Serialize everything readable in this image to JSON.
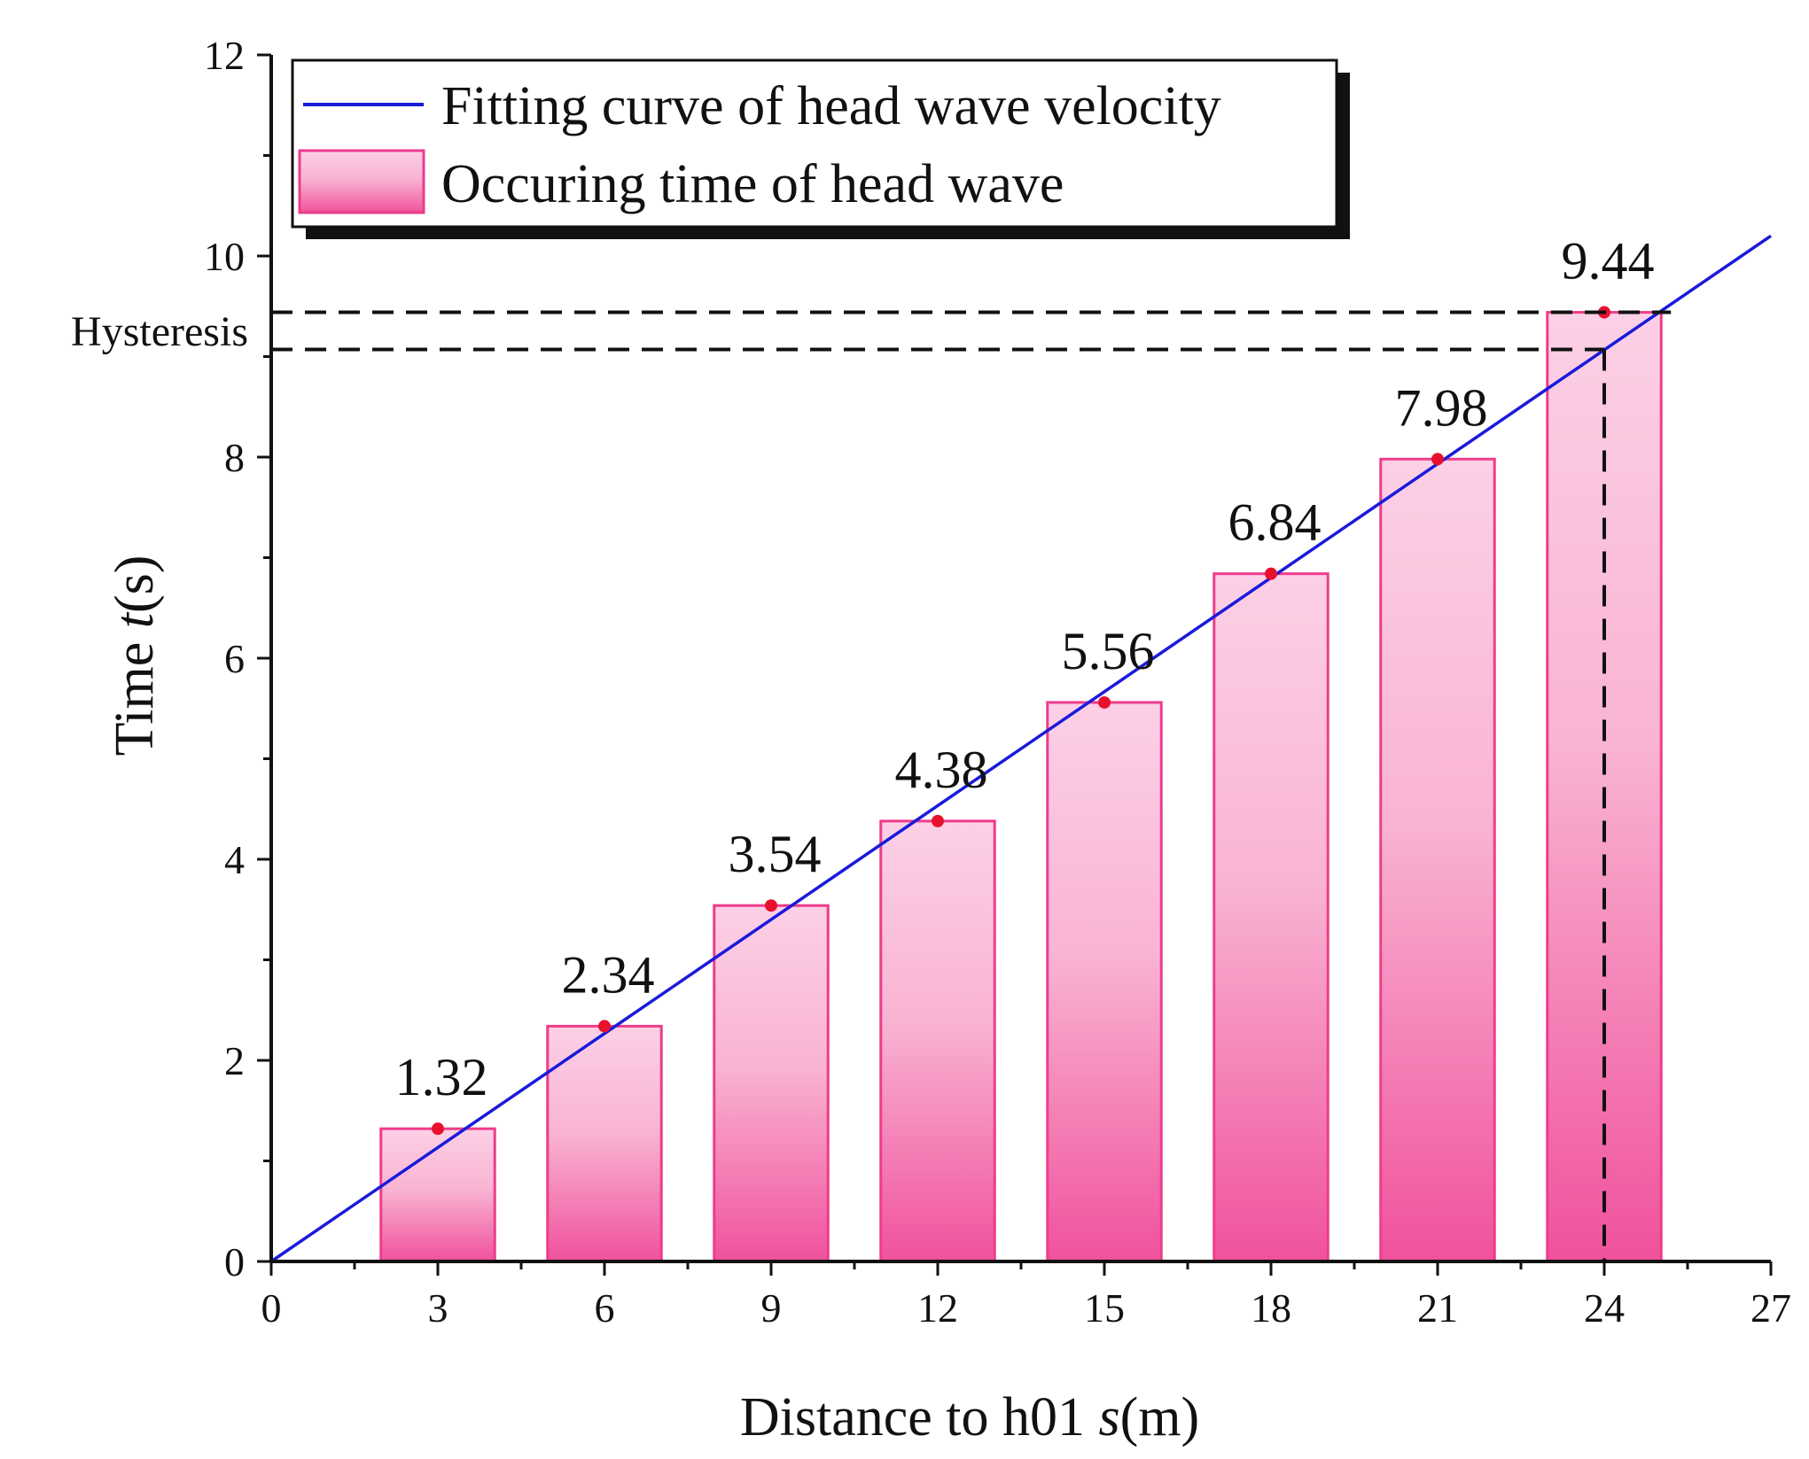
{
  "chart_data": {
    "type": "bar",
    "x": [
      3,
      6,
      9,
      12,
      15,
      18,
      21,
      24
    ],
    "values": [
      1.32,
      2.34,
      3.54,
      4.38,
      5.56,
      6.84,
      7.98,
      9.44
    ],
    "data_labels": [
      "1.32",
      "2.34",
      "3.54",
      "4.38",
      "5.56",
      "6.84",
      "7.98",
      "9.44"
    ],
    "fit_line": {
      "x_start": 0,
      "y_start": 0,
      "x_end": 27,
      "y_end": 10.2
    },
    "hysteresis": {
      "upper": 9.44,
      "lower": 9.07,
      "x": 24,
      "label": "Hysteresis"
    },
    "xlim": [
      0,
      27
    ],
    "ylim": [
      0,
      12
    ],
    "xticks": [
      0,
      3,
      6,
      9,
      12,
      15,
      18,
      21,
      24,
      27
    ],
    "xtick_labels": [
      "0",
      "3",
      "6",
      "9",
      "12",
      "15",
      "18",
      "21",
      "24",
      "27"
    ],
    "yticks": [
      0,
      2,
      4,
      6,
      8,
      10,
      12
    ],
    "ytick_labels": [
      "0",
      "2",
      "4",
      "6",
      "8",
      "10",
      "12"
    ],
    "xlabel": {
      "pre": "Distance to h01 ",
      "var": "s",
      "post": "(m)"
    },
    "ylabel": {
      "pre": "Time ",
      "var": "t",
      "post": "(s)"
    },
    "legend": {
      "position": "top-left",
      "line_label": "Fitting curve of head wave velocity",
      "bar_label": "Occuring time of head wave"
    },
    "colors": {
      "line": "#1a1adb",
      "bar_top": "#fcd0e6",
      "bar_bottom": "#f0529c",
      "bar_stroke": "#ee3c8c",
      "point": "#e8112d",
      "axis": "#111111"
    }
  }
}
